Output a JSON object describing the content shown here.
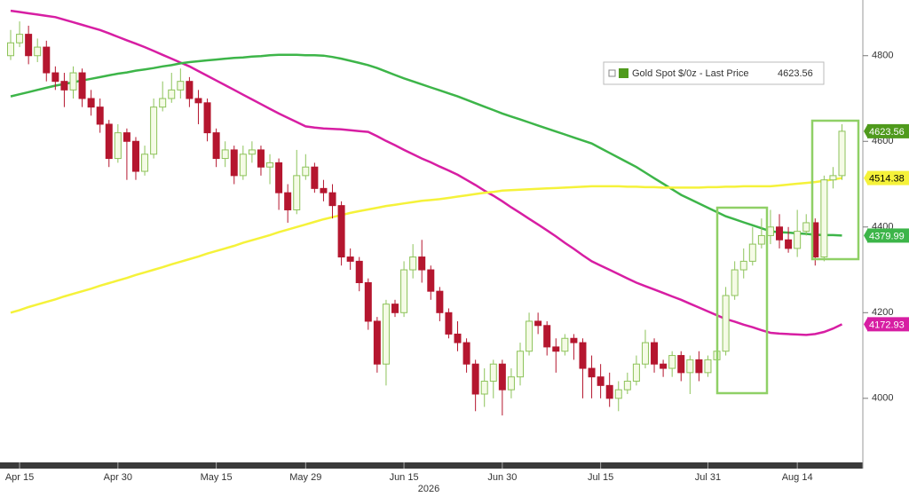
{
  "chart_data": {
    "type": "candlestick",
    "categories": [
      null,
      "Apr 15",
      null,
      null,
      null,
      null,
      null,
      null,
      null,
      null,
      null,
      null,
      "Apr 30",
      null,
      null,
      null,
      null,
      null,
      null,
      null,
      null,
      null,
      null,
      "May 15",
      null,
      null,
      null,
      null,
      null,
      null,
      null,
      null,
      null,
      "May 29",
      null,
      null,
      null,
      null,
      null,
      null,
      null,
      null,
      null,
      null,
      "Jun 15",
      null,
      null,
      null,
      null,
      null,
      null,
      null,
      null,
      null,
      null,
      "Jun 30",
      null,
      null,
      null,
      null,
      null,
      null,
      null,
      null,
      null,
      null,
      "Jul 15",
      null,
      null,
      null,
      null,
      null,
      null,
      null,
      null,
      null,
      null,
      null,
      "Jul 31",
      null,
      null,
      null,
      null,
      null,
      null,
      null,
      null,
      null,
      "Aug 14",
      null,
      null,
      null,
      null,
      null
    ],
    "year_label": "2026",
    "series": [
      {
        "name": "Gold Spot $/0z - Last Price",
        "color": "#4f9a1c",
        "up_color": "#f5fbe6",
        "up_stroke": "#8dc35a",
        "down_color": "#b5162f",
        "open": [
          4800,
          4830,
          4850,
          4800,
          4820,
          4760,
          4740,
          4720,
          4760,
          4700,
          4680,
          4640,
          4560,
          4620,
          4600,
          4530,
          4570,
          4680,
          4700,
          4720,
          4740,
          4700,
          4690,
          4620,
          4560,
          4580,
          4520,
          4570,
          4580,
          4540,
          4550,
          4480,
          4440,
          4520,
          4540,
          4490,
          4480,
          4450,
          4330,
          4320,
          4270,
          4180,
          4080,
          4220,
          4200,
          4300,
          4330,
          4300,
          4250,
          4200,
          4150,
          4130,
          4080,
          4010,
          4040,
          4080,
          4020,
          4050,
          4110,
          4180,
          4170,
          4120,
          4110,
          4140,
          4130,
          4070,
          4050,
          4030,
          4000,
          4020,
          4040,
          4080,
          4130,
          4080,
          4070,
          4100,
          4060,
          4090,
          4060,
          4090,
          4110,
          4240,
          4300,
          4320,
          4360,
          4380,
          4400,
          4370,
          4350,
          4390,
          4410,
          4330,
          4510,
          4520
        ],
        "high": [
          4860,
          4880,
          4870,
          4840,
          4835,
          4775,
          4760,
          4775,
          4770,
          4720,
          4700,
          4650,
          4640,
          4630,
          4610,
          4590,
          4700,
          4740,
          4760,
          4770,
          4750,
          4720,
          4700,
          4630,
          4600,
          4590,
          4590,
          4600,
          4590,
          4570,
          4560,
          4500,
          4580,
          4570,
          4550,
          4510,
          4500,
          4460,
          4350,
          4330,
          4280,
          4190,
          4230,
          4230,
          4320,
          4360,
          4370,
          4310,
          4260,
          4210,
          4180,
          4140,
          4090,
          4070,
          4090,
          4090,
          4070,
          4130,
          4200,
          4200,
          4180,
          4140,
          4150,
          4150,
          4140,
          4100,
          4080,
          4060,
          4040,
          4060,
          4100,
          4160,
          4140,
          4090,
          4110,
          4110,
          4100,
          4110,
          4100,
          4130,
          4260,
          4320,
          4350,
          4400,
          4420,
          4440,
          4430,
          4400,
          4440,
          4430,
          4420,
          4520,
          4540,
          4640
        ],
        "low": [
          4790,
          4820,
          4780,
          4785,
          4740,
          4720,
          4680,
          4700,
          4680,
          4660,
          4620,
          4540,
          4550,
          4510,
          4510,
          4520,
          4560,
          4670,
          4690,
          4700,
          4680,
          4640,
          4600,
          4540,
          4540,
          4500,
          4510,
          4550,
          4520,
          4500,
          4440,
          4410,
          4430,
          4510,
          4480,
          4460,
          4420,
          4310,
          4300,
          4250,
          4160,
          4060,
          4030,
          4190,
          4190,
          4280,
          4270,
          4230,
          4180,
          4140,
          4110,
          4060,
          3970,
          3980,
          4000,
          3960,
          4000,
          4030,
          4100,
          4150,
          4100,
          4060,
          4100,
          4090,
          4000,
          4000,
          4000,
          3980,
          3970,
          4010,
          4030,
          4070,
          4060,
          4050,
          4050,
          4040,
          4010,
          4040,
          4050,
          4070,
          4100,
          4230,
          4280,
          4310,
          4350,
          4360,
          4350,
          4340,
          4330,
          4380,
          4310,
          4320,
          4490,
          4510
        ],
        "close": [
          4830,
          4850,
          4800,
          4820,
          4760,
          4740,
          4720,
          4760,
          4700,
          4680,
          4640,
          4560,
          4620,
          4600,
          4530,
          4570,
          4680,
          4700,
          4720,
          4740,
          4700,
          4690,
          4620,
          4560,
          4580,
          4520,
          4570,
          4580,
          4540,
          4550,
          4480,
          4440,
          4520,
          4540,
          4490,
          4480,
          4450,
          4330,
          4320,
          4270,
          4180,
          4080,
          4220,
          4200,
          4300,
          4330,
          4300,
          4250,
          4200,
          4150,
          4130,
          4080,
          4010,
          4040,
          4080,
          4020,
          4050,
          4110,
          4180,
          4170,
          4120,
          4110,
          4140,
          4130,
          4070,
          4050,
          4030,
          4000,
          4020,
          4040,
          4080,
          4130,
          4080,
          4070,
          4100,
          4060,
          4090,
          4060,
          4090,
          4110,
          4240,
          4300,
          4320,
          4360,
          4380,
          4400,
          4370,
          4350,
          4390,
          4410,
          4330,
          4510,
          4520,
          4623.56
        ]
      }
    ],
    "overlays": [
      {
        "color": "#d71ea3",
        "label_text": "#ffffff",
        "values": [
          4905,
          4902,
          4899,
          4896,
          4893,
          4890,
          4884,
          4878,
          4872,
          4866,
          4860,
          4852,
          4844,
          4836,
          4828,
          4820,
          4811,
          4802,
          4793,
          4784,
          4775,
          4764,
          4753,
          4742,
          4731,
          4720,
          4709,
          4698,
          4687,
          4676,
          4665,
          4655,
          4645,
          4635,
          4632,
          4630,
          4629,
          4628,
          4626,
          4624,
          4622,
          4612,
          4601,
          4591,
          4580,
          4570,
          4560,
          4551,
          4541,
          4532,
          4522,
          4510,
          4498,
          4485,
          4473,
          4460,
          4446,
          4433,
          4419,
          4406,
          4392,
          4378,
          4363,
          4349,
          4334,
          4320,
          4310,
          4300,
          4290,
          4280,
          4270,
          4262,
          4254,
          4246,
          4238,
          4230,
          4221,
          4212,
          4203,
          4194,
          4185,
          4179,
          4172,
          4166,
          4159,
          4153,
          4151,
          4150,
          4149,
          4148,
          4150,
          4155,
          4163,
          4172.93
        ]
      },
      {
        "color": "#3db549",
        "label_text": "#ffffff",
        "values": [
          4705,
          4710,
          4715,
          4720,
          4725,
          4730,
          4734,
          4738,
          4742,
          4746,
          4750,
          4754,
          4758,
          4761,
          4765,
          4768,
          4771,
          4775,
          4778,
          4782,
          4785,
          4787,
          4789,
          4791,
          4793,
          4795,
          4796,
          4798,
          4799,
          4801,
          4802,
          4802,
          4802,
          4801,
          4801,
          4800,
          4797,
          4793,
          4788,
          4783,
          4778,
          4771,
          4763,
          4755,
          4747,
          4740,
          4733,
          4726,
          4719,
          4712,
          4705,
          4697,
          4689,
          4681,
          4673,
          4665,
          4658,
          4651,
          4644,
          4637,
          4630,
          4623,
          4616,
          4609,
          4602,
          4595,
          4584,
          4573,
          4562,
          4551,
          4540,
          4527,
          4514,
          4501,
          4488,
          4475,
          4465,
          4455,
          4445,
          4435,
          4425,
          4418,
          4411,
          4404,
          4397,
          4390,
          4388,
          4387,
          4385,
          4384,
          4382,
          4381,
          4381,
          4379.99
        ]
      },
      {
        "color": "#f5f23a",
        "label_text": "#000000",
        "values": [
          4200,
          4206,
          4213,
          4219,
          4225,
          4231,
          4238,
          4244,
          4250,
          4256,
          4263,
          4269,
          4275,
          4281,
          4288,
          4294,
          4300,
          4306,
          4313,
          4319,
          4325,
          4331,
          4338,
          4344,
          4350,
          4356,
          4363,
          4369,
          4375,
          4381,
          4388,
          4394,
          4400,
          4406,
          4412,
          4418,
          4423,
          4428,
          4433,
          4437,
          4441,
          4445,
          4449,
          4452,
          4455,
          4458,
          4461,
          4463,
          4465,
          4468,
          4471,
          4474,
          4477,
          4480,
          4482,
          4485,
          4486,
          4487,
          4488,
          4489,
          4490,
          4491,
          4492,
          4493,
          4494,
          4495,
          4495,
          4495,
          4495,
          4494,
          4494,
          4493,
          4493,
          4492,
          4492,
          4492,
          4492,
          4492,
          4493,
          4493,
          4494,
          4494,
          4495,
          4495,
          4495,
          4495,
          4497,
          4499,
          4501,
          4503,
          4505,
          4508,
          4511,
          4514.38
        ]
      }
    ],
    "ylim": [
      3838,
      4930
    ],
    "yticks": [
      4000,
      4200,
      4400,
      4600,
      4800
    ]
  }
}
